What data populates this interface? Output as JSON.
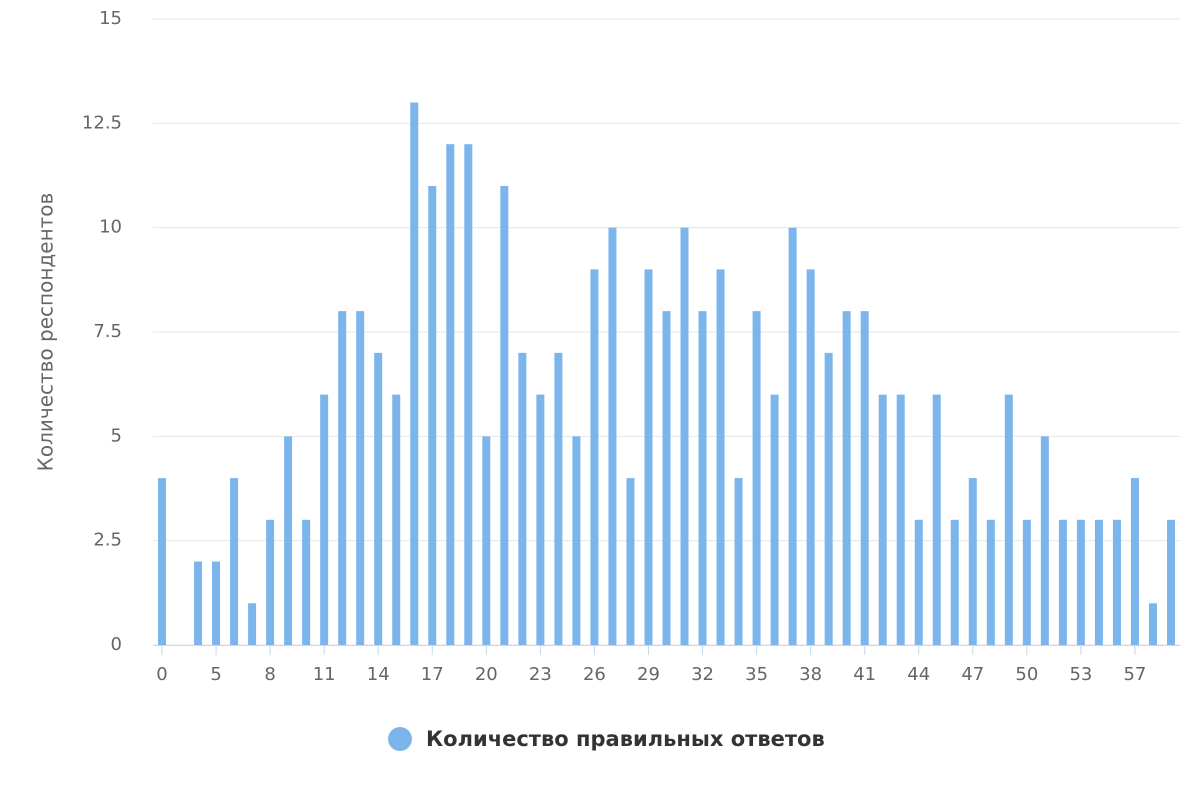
{
  "chart_data": {
    "type": "bar",
    "y_axis_label": "Количество респондентов",
    "categories": [
      "0",
      null,
      null,
      "5",
      null,
      null,
      "8",
      null,
      null,
      "11",
      null,
      null,
      "14",
      null,
      null,
      "17",
      null,
      null,
      "20",
      null,
      null,
      "23",
      null,
      null,
      "26",
      null,
      null,
      "29",
      null,
      null,
      "32",
      null,
      null,
      "35",
      null,
      null,
      "38",
      null,
      null,
      "41",
      null,
      null,
      "44",
      null,
      null,
      "47",
      null,
      null,
      "50",
      null,
      null,
      "53",
      null,
      null,
      "57",
      null,
      null
    ],
    "series": [
      {
        "name": "Количество правильных ответов",
        "color": "#7cb5ec",
        "values": [
          4,
          0,
          2,
          2,
          4,
          1,
          3,
          5,
          3,
          6,
          8,
          8,
          7,
          6,
          13,
          11,
          12,
          12,
          5,
          11,
          7,
          6,
          7,
          5,
          9,
          10,
          4,
          9,
          8,
          10,
          8,
          9,
          4,
          8,
          6,
          10,
          9,
          7,
          8,
          8,
          6,
          6,
          3,
          6,
          3,
          4,
          3,
          6,
          3,
          5,
          3,
          3,
          3,
          3,
          4,
          1,
          3
        ]
      }
    ],
    "ylim": [
      0,
      15
    ],
    "yticks": [
      0,
      2.5,
      5,
      7.5,
      10,
      12.5,
      15
    ],
    "grid": true
  }
}
